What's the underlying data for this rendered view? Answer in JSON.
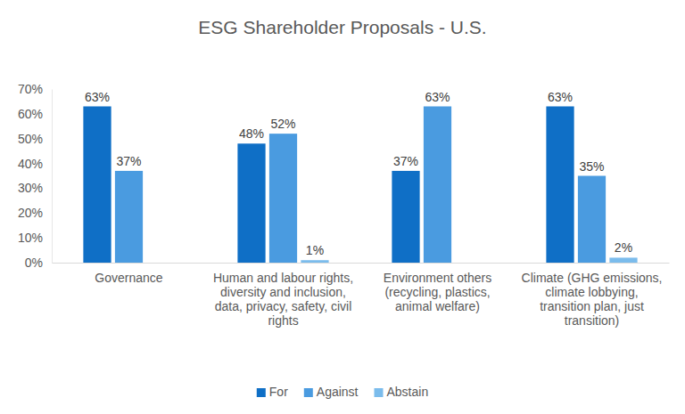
{
  "chart_data": {
    "type": "bar",
    "title": "ESG Shareholder Proposals - U.S.",
    "categories": [
      "Governance",
      "Human and labour rights, diversity and inclusion, data, privacy, safety, civil rights",
      "Environment others (recycling, plastics, animal welfare)",
      "Climate (GHG emissions, climate lobbying, transition plan, just transition)"
    ],
    "series": [
      {
        "name": "For",
        "color": "#0f6fc6",
        "values": [
          63,
          48,
          37,
          63
        ],
        "value_labels": [
          "63%",
          "48%",
          "37%",
          "63%"
        ]
      },
      {
        "name": "Against",
        "color": "#4a9be0",
        "values": [
          37,
          52,
          63,
          35
        ],
        "value_labels": [
          "37%",
          "52%",
          "63%",
          "35%"
        ]
      },
      {
        "name": "Abstain",
        "color": "#7bbcec",
        "values": [
          null,
          1,
          null,
          2
        ],
        "value_labels": [
          null,
          "1%",
          null,
          "2%"
        ]
      }
    ],
    "ylim": [
      0,
      70
    ],
    "yticks": [
      {
        "value": 0,
        "label": "0%"
      },
      {
        "value": 10,
        "label": "10%"
      },
      {
        "value": 20,
        "label": "20%"
      },
      {
        "value": 30,
        "label": "30%"
      },
      {
        "value": 40,
        "label": "40%"
      },
      {
        "value": 50,
        "label": "50%"
      },
      {
        "value": 60,
        "label": "60%"
      },
      {
        "value": 70,
        "label": "70%"
      }
    ],
    "grid": false,
    "legend": "bottom",
    "data_labels": true
  }
}
